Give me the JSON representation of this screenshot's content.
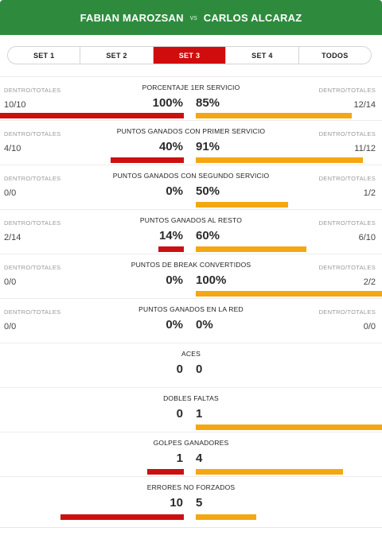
{
  "header": {
    "player1": "FABIAN MAROZSAN",
    "vs": "vs",
    "player2": "CARLOS ALCARAZ"
  },
  "tabs": [
    {
      "label": "SET 1",
      "active": false
    },
    {
      "label": "SET 2",
      "active": false
    },
    {
      "label": "SET 3",
      "active": true
    },
    {
      "label": "SET 4",
      "active": false
    },
    {
      "label": "TODOS",
      "active": false
    }
  ],
  "colors": {
    "header_bg": "#2e8b3e",
    "active_tab": "#d10c0c",
    "player1_bar": "#cc1010",
    "player2_bar": "#f4a712"
  },
  "stats": [
    {
      "label": "PORCENTAJE 1ER SERVICIO",
      "left_sub_label": "DENTRO/TOTALES",
      "right_sub_label": "DENTRO/TOTALES",
      "left_count": "10/10",
      "right_count": "12/14",
      "left_value": "100%",
      "right_value": "85%",
      "left_fill": 1.0,
      "right_fill": 0.85
    },
    {
      "label": "PUNTOS GANADOS CON PRIMER SERVICIO",
      "left_sub_label": "DENTRO/TOTALES",
      "right_sub_label": "DENTRO/TOTALES",
      "left_count": "4/10",
      "right_count": "11/12",
      "left_value": "40%",
      "right_value": "91%",
      "left_fill": 0.4,
      "right_fill": 0.91
    },
    {
      "label": "PUNTOS GANADOS CON SEGUNDO SERVICIO",
      "left_sub_label": "DENTRO/TOTALES",
      "right_sub_label": "DENTRO/TOTALES",
      "left_count": "0/0",
      "right_count": "1/2",
      "left_value": "0%",
      "right_value": "50%",
      "left_fill": 0.0,
      "right_fill": 0.5
    },
    {
      "label": "PUNTOS GANADOS AL RESTO",
      "left_sub_label": "DENTRO/TOTALES",
      "right_sub_label": "DENTRO/TOTALES",
      "left_count": "2/14",
      "right_count": "6/10",
      "left_value": "14%",
      "right_value": "60%",
      "left_fill": 0.14,
      "right_fill": 0.6
    },
    {
      "label": "PUNTOS DE BREAK CONVERTIDOS",
      "left_sub_label": "DENTRO/TOTALES",
      "right_sub_label": "DENTRO/TOTALES",
      "left_count": "0/0",
      "right_count": "2/2",
      "left_value": "0%",
      "right_value": "100%",
      "left_fill": 0.0,
      "right_fill": 1.0
    },
    {
      "label": "PUNTOS GANADOS EN LA RED",
      "left_sub_label": "DENTRO/TOTALES",
      "right_sub_label": "DENTRO/TOTALES",
      "left_count": "0/0",
      "right_count": "0/0",
      "left_value": "0%",
      "right_value": "0%",
      "left_fill": 0.0,
      "right_fill": 0.0
    },
    {
      "label": "ACES",
      "left_value": "0",
      "right_value": "0",
      "left_fill": 0.0,
      "right_fill": 0.0
    },
    {
      "label": "DOBLES FALTAS",
      "left_value": "0",
      "right_value": "1",
      "left_fill": 0.0,
      "right_fill": 1.0
    },
    {
      "label": "GOLPES GANADORES",
      "left_value": "1",
      "right_value": "4",
      "left_fill": 0.2,
      "right_fill": 0.8
    },
    {
      "label": "ERRORES NO FORZADOS",
      "left_value": "10",
      "right_value": "5",
      "left_fill": 0.67,
      "right_fill": 0.33
    }
  ]
}
